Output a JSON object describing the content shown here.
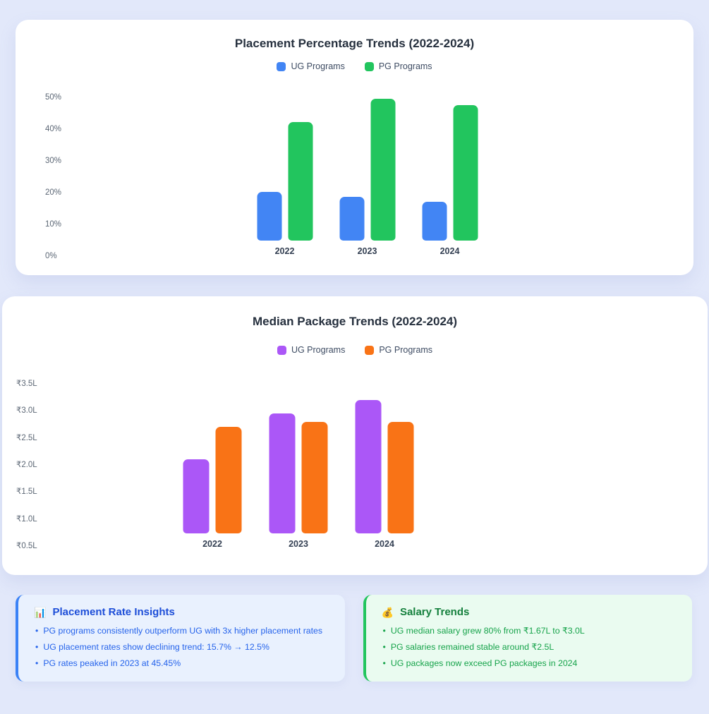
{
  "chart_data": [
    {
      "type": "bar",
      "title": "Placement Percentage Trends (2022-2024)",
      "categories": [
        "2022",
        "2023",
        "2024"
      ],
      "series": [
        {
          "name": "UG Programs",
          "color": "#4285f4",
          "values": [
            15.7,
            14.0,
            12.5
          ]
        },
        {
          "name": "PG Programs",
          "color": "#22c55e",
          "values": [
            38.0,
            45.45,
            43.5
          ]
        }
      ],
      "y_ticks": [
        "50%",
        "40%",
        "30%",
        "20%",
        "10%",
        "0%"
      ],
      "xlabel": "",
      "ylabel": "",
      "ylim": [
        0,
        50
      ],
      "grid": false,
      "legend_position": "top"
    },
    {
      "type": "bar",
      "title": "Median Package Trends (2022-2024)",
      "categories": [
        "2022",
        "2023",
        "2024"
      ],
      "series": [
        {
          "name": "UG Programs",
          "color": "#ab57f7",
          "values": [
            1.67,
            2.7,
            3.0
          ]
        },
        {
          "name": "PG Programs",
          "color": "#f97316",
          "values": [
            2.4,
            2.5,
            2.5
          ]
        }
      ],
      "y_ticks": [
        "₹3.5L",
        "₹3.0L",
        "₹2.5L",
        "₹2.0L",
        "₹1.5L",
        "₹1.0L",
        "₹0.5L"
      ],
      "xlabel": "",
      "ylabel": "",
      "ylim": [
        0,
        3.5
      ],
      "grid": false,
      "legend_position": "top"
    }
  ],
  "insights": [
    {
      "icon": "📊",
      "title": "Placement Rate Insights",
      "accent": "#3b82f6",
      "bg": "#e9f1fe",
      "title_color": "#1d4ed8",
      "text_color": "#2563eb",
      "bullets": [
        "PG programs consistently outperform UG with 3x higher placement rates",
        "UG placement rates show declining trend: 15.7% → 12.5%",
        "PG rates peaked in 2023 at 45.45%"
      ]
    },
    {
      "icon": "💰",
      "title": "Salary Trends",
      "accent": "#22c55e",
      "bg": "#eafbf0",
      "title_color": "#15803d",
      "text_color": "#16a34a",
      "bullets": [
        "UG median salary grew 80% from ₹1.67L to ₹3.0L",
        "PG salaries remained stable around ₹2.5L",
        "UG packages now exceed PG packages in 2024"
      ]
    }
  ]
}
